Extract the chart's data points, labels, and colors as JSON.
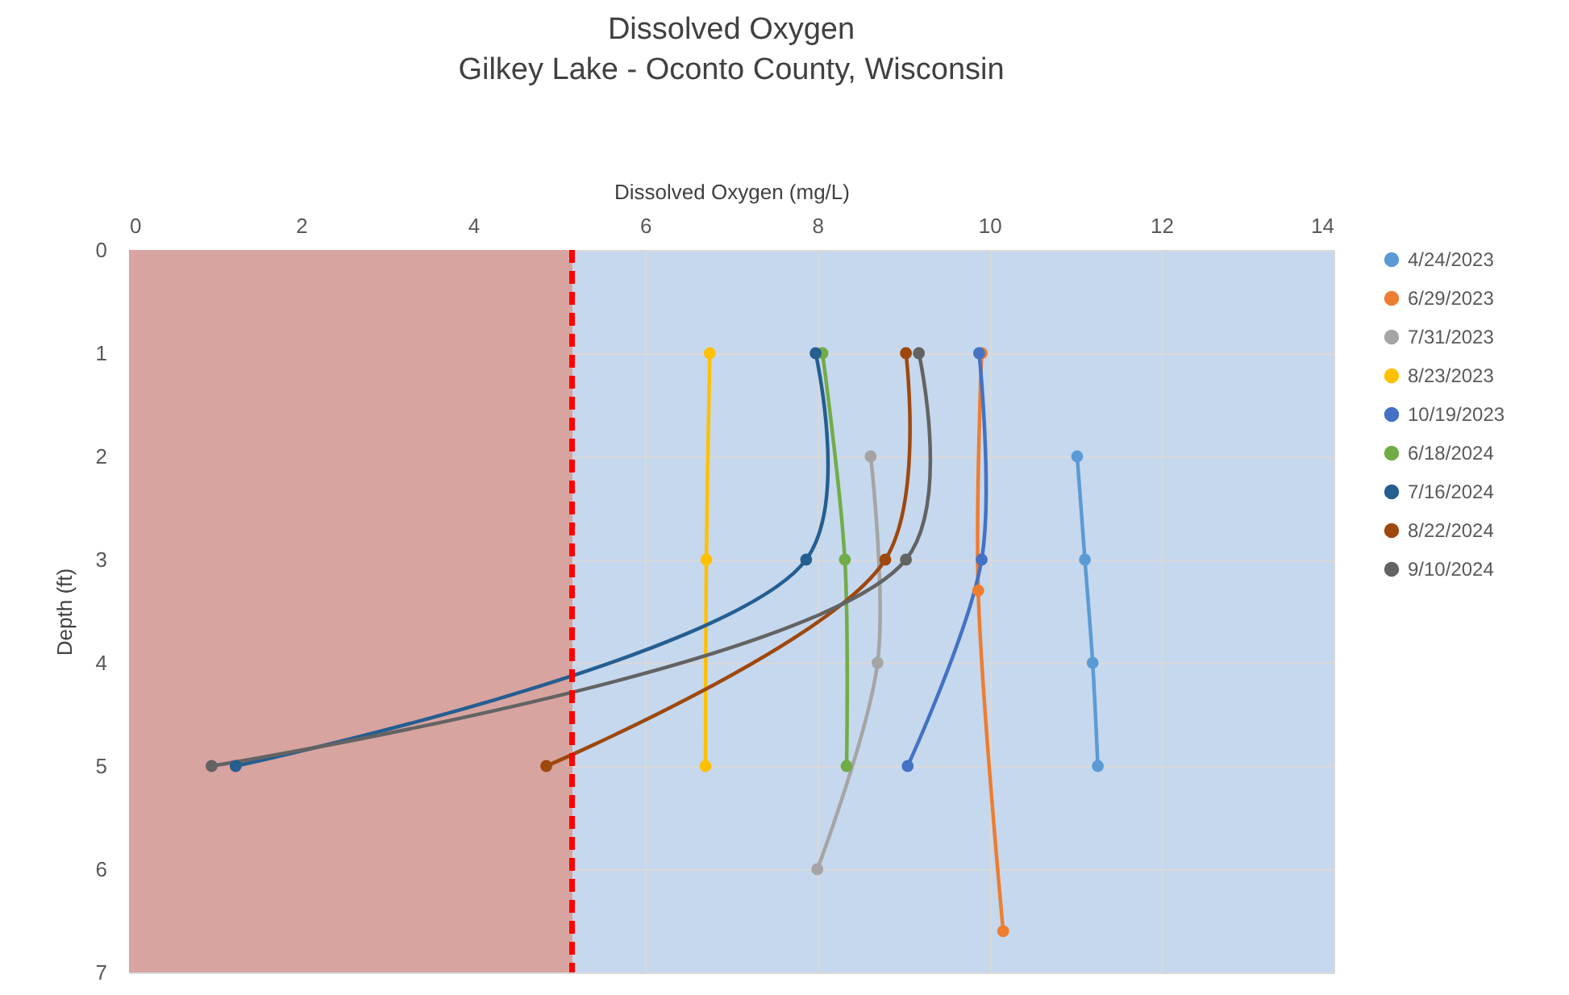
{
  "chart_data": {
    "type": "line",
    "title": "Dissolved Oxygen",
    "subtitle": "Gilkey Lake - Oconto County, Wisconsin",
    "xlabel": "Dissolved Oxygen (mg/L)",
    "ylabel": "Depth (ft)",
    "xlim": [
      0,
      14
    ],
    "xticks": [
      0,
      2,
      4,
      6,
      8,
      10,
      12,
      14
    ],
    "ylim": [
      7,
      0
    ],
    "yticks": [
      0,
      1,
      2,
      3,
      4,
      5,
      6,
      7
    ],
    "grid": true,
    "legend": "right",
    "marker": "circle",
    "line_style": "solid",
    "ref_lines": [
      {
        "axis": "x",
        "value": 5.15,
        "color": "#ff0000",
        "line_style": "dashed"
      }
    ],
    "bands": [
      {
        "axis": "x",
        "from": 0,
        "to": 5.15,
        "color": "#d9a3a0"
      }
    ],
    "series": [
      {
        "name": "4/24/2023",
        "color": "#5b9bd5",
        "x": [
          11.02,
          11.11,
          11.2,
          11.26
        ],
        "values": [
          2,
          3,
          4,
          5
        ]
      },
      {
        "name": "6/29/2023",
        "color": "#ed7d31",
        "x": [
          9.91,
          9.87,
          10.16
        ],
        "values": [
          1,
          3.3,
          6.6
        ]
      },
      {
        "name": "7/31/2023",
        "color": "#a5a5a5",
        "x": [
          8.62,
          8.7,
          8.0
        ],
        "values": [
          2,
          4,
          6
        ]
      },
      {
        "name": "8/23/2023",
        "color": "#ffc000",
        "x": [
          6.75,
          6.71,
          6.7
        ],
        "values": [
          1,
          3,
          5
        ]
      },
      {
        "name": "10/19/2023",
        "color": "#4472c4",
        "x": [
          9.88,
          9.91,
          9.05
        ],
        "values": [
          1,
          3,
          5
        ]
      },
      {
        "name": "6/18/2024",
        "color": "#70ad47",
        "x": [
          8.06,
          8.32,
          8.34
        ],
        "values": [
          1,
          3,
          5
        ]
      },
      {
        "name": "7/16/2024",
        "color": "#255e91",
        "x": [
          7.98,
          7.87,
          1.24
        ],
        "values": [
          1,
          3,
          5
        ]
      },
      {
        "name": "8/22/2024",
        "color": "#9e480e",
        "x": [
          9.03,
          8.79,
          4.85
        ],
        "values": [
          1,
          3,
          5
        ]
      },
      {
        "name": "9/10/2024",
        "color": "#636363",
        "x": [
          9.18,
          9.03,
          0.96
        ],
        "values": [
          1,
          3,
          5
        ]
      }
    ]
  }
}
